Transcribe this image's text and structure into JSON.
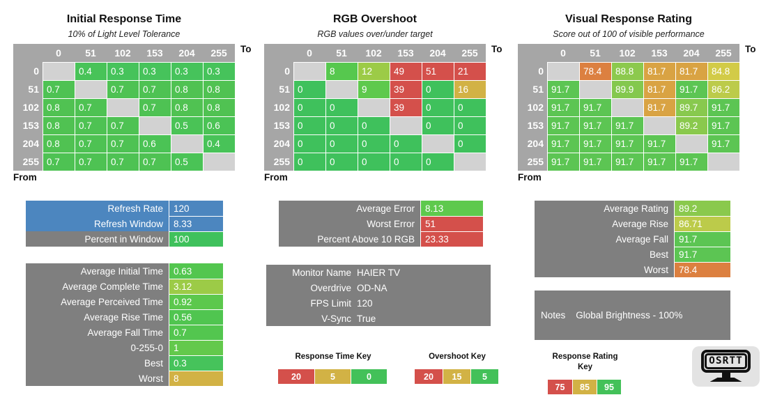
{
  "colors": {
    "header_gray": "#a6a6a6",
    "diagonal_gray": "#d2d2d2",
    "label_gray": "#7f7f7f",
    "blue": "#4c86bf",
    "key_red": "#d4504b",
    "key_gold": "#d2b245",
    "key_green": "#43c159"
  },
  "chart_data": [
    {
      "type": "heatmap",
      "title": "Initial Response Time",
      "subtitle": "10% of Light Level Tolerance",
      "x_label": "To",
      "y_label": "From",
      "x_ticks": [
        "0",
        "51",
        "102",
        "153",
        "204",
        "255"
      ],
      "y_ticks": [
        "0",
        "51",
        "102",
        "153",
        "204",
        "255"
      ],
      "values": [
        [
          null,
          "0.4",
          "0.3",
          "0.3",
          "0.3",
          "0.3"
        ],
        [
          "0.7",
          null,
          "0.7",
          "0.7",
          "0.8",
          "0.8"
        ],
        [
          "0.8",
          "0.7",
          null,
          "0.7",
          "0.8",
          "0.8"
        ],
        [
          "0.8",
          "0.7",
          "0.7",
          null,
          "0.5",
          "0.6"
        ],
        [
          "0.8",
          "0.7",
          "0.7",
          "0.6",
          null,
          "0.4"
        ],
        [
          "0.7",
          "0.7",
          "0.7",
          "0.7",
          "0.5",
          null
        ]
      ],
      "cell_colors": [
        [
          null,
          "#48c358",
          "#46c35b",
          "#46c35b",
          "#46c35b",
          "#46c35b"
        ],
        [
          "#4ec253",
          null,
          "#4ec253",
          "#4ec253",
          "#50c252",
          "#50c252"
        ],
        [
          "#50c252",
          "#4ec253",
          null,
          "#4ec253",
          "#50c252",
          "#50c252"
        ],
        [
          "#50c252",
          "#4ec253",
          "#4ec253",
          null,
          "#4ac356",
          "#4bc355"
        ],
        [
          "#50c252",
          "#4ec253",
          "#4ec253",
          "#4bc355",
          null,
          "#48c358"
        ],
        [
          "#4ec253",
          "#4ec253",
          "#4ec253",
          "#4ec253",
          "#4ac356",
          null
        ]
      ]
    },
    {
      "type": "heatmap",
      "title": "RGB Overshoot",
      "subtitle": "RGB values over/under target",
      "x_label": "To",
      "y_label": "From",
      "x_ticks": [
        "0",
        "51",
        "102",
        "153",
        "204",
        "255"
      ],
      "y_ticks": [
        "0",
        "51",
        "102",
        "153",
        "204",
        "255"
      ],
      "values": [
        [
          null,
          "8",
          "12",
          "49",
          "51",
          "21"
        ],
        [
          "0",
          null,
          "9",
          "39",
          "0",
          "16"
        ],
        [
          "0",
          "0",
          null,
          "39",
          "0",
          "0"
        ],
        [
          "0",
          "0",
          "0",
          null,
          "0",
          "0"
        ],
        [
          "0",
          "0",
          "0",
          "0",
          null,
          "0"
        ],
        [
          "0",
          "0",
          "0",
          "0",
          "0",
          null
        ]
      ],
      "cell_colors": [
        [
          null,
          "#56c84e",
          "#9ccb47",
          "#d4504b",
          "#d4504b",
          "#d4504b"
        ],
        [
          "#3fc15c",
          null,
          "#5ec94d",
          "#d4504b",
          "#3fc15c",
          "#d2b245"
        ],
        [
          "#3fc15c",
          "#3fc15c",
          null,
          "#d4504b",
          "#3fc15c",
          "#3fc15c"
        ],
        [
          "#3fc15c",
          "#3fc15c",
          "#3fc15c",
          null,
          "#3fc15c",
          "#3fc15c"
        ],
        [
          "#3fc15c",
          "#3fc15c",
          "#3fc15c",
          "#3fc15c",
          null,
          "#3fc15c"
        ],
        [
          "#3fc15c",
          "#3fc15c",
          "#3fc15c",
          "#3fc15c",
          "#3fc15c",
          null
        ]
      ]
    },
    {
      "type": "heatmap",
      "title": "Visual Response Rating",
      "subtitle": "Score out of 100 of visible performance",
      "x_label": "To",
      "y_label": "From",
      "x_ticks": [
        "0",
        "51",
        "102",
        "153",
        "204",
        "255"
      ],
      "y_ticks": [
        "0",
        "51",
        "102",
        "153",
        "204",
        "255"
      ],
      "values": [
        [
          null,
          "78.4",
          "88.8",
          "81.7",
          "81.7",
          "84.8"
        ],
        [
          "91.7",
          null,
          "89.9",
          "81.7",
          "91.7",
          "86.2"
        ],
        [
          "91.7",
          "91.7",
          null,
          "81.7",
          "89.7",
          "91.7"
        ],
        [
          "91.7",
          "91.7",
          "91.7",
          null,
          "89.2",
          "91.7"
        ],
        [
          "91.7",
          "91.7",
          "91.7",
          "91.7",
          null,
          "91.7"
        ],
        [
          "91.7",
          "91.7",
          "91.7",
          "91.7",
          "91.7",
          null
        ]
      ],
      "cell_colors": [
        [
          null,
          "#dc8040",
          "#8cc94d",
          "#d9a343",
          "#d9a343",
          "#d2cb47"
        ],
        [
          "#5cc553",
          null,
          "#84c84e",
          "#d9a343",
          "#5cc553",
          "#bccb4a"
        ],
        [
          "#5cc553",
          "#5cc553",
          null,
          "#d9a343",
          "#88c94e",
          "#5cc553"
        ],
        [
          "#5cc553",
          "#5cc553",
          "#5cc553",
          null,
          "#8ac94d",
          "#5cc553"
        ],
        [
          "#5cc553",
          "#5cc553",
          "#5cc553",
          "#5cc553",
          null,
          "#5cc553"
        ],
        [
          "#5cc553",
          "#5cc553",
          "#5cc553",
          "#5cc553",
          "#5cc553",
          null
        ]
      ]
    }
  ],
  "summary_tables": [
    {
      "id": "refresh",
      "rows": [
        {
          "label": "Refresh Rate",
          "value": "120",
          "label_bg": "#4c86bf",
          "value_bg": "#4c86bf"
        },
        {
          "label": "Refresh Window",
          "value": "8.33",
          "label_bg": "#4c86bf",
          "value_bg": "#4c86bf"
        },
        {
          "label": "Percent in Window",
          "value": "100",
          "value_bg": "#3fc15c"
        }
      ]
    },
    {
      "id": "response",
      "rows": [
        {
          "label": "Average Initial Time",
          "value": "0.63",
          "value_bg": "#53c64f"
        },
        {
          "label": "Average Complete Time",
          "value": "3.12",
          "value_bg": "#9ccb47"
        },
        {
          "label": "Average Perceived Time",
          "value": "0.92",
          "value_bg": "#5cc84d"
        },
        {
          "label": "Average Rise Time",
          "value": "0.56",
          "value_bg": "#50c550"
        },
        {
          "label": "Average Fall Time",
          "value": "0.7",
          "value_bg": "#53c64f"
        },
        {
          "label": "0-255-0",
          "value": "1",
          "value_bg": "#63c94c"
        },
        {
          "label": "Best",
          "value": "0.3",
          "value_bg": "#46c35b"
        },
        {
          "label": "Worst",
          "value": "8",
          "value_bg": "#d2b245"
        }
      ]
    },
    {
      "id": "error",
      "rows": [
        {
          "label": "Average Error",
          "value": "8.13",
          "value_bg": "#5ec94d"
        },
        {
          "label": "Worst Error",
          "value": "51",
          "value_bg": "#d4504b"
        },
        {
          "label": "Percent Above 10 RGB",
          "value": "23.33",
          "value_bg": "#d4504b"
        }
      ]
    },
    {
      "id": "rating",
      "rows": [
        {
          "label": "Average Rating",
          "value": "89.2",
          "value_bg": "#8ac94d"
        },
        {
          "label": "Average Rise",
          "value": "86.71",
          "value_bg": "#bccb4a"
        },
        {
          "label": "Average Fall",
          "value": "91.7",
          "value_bg": "#5cc553"
        },
        {
          "label": "Best",
          "value": "91.7",
          "value_bg": "#5cc553"
        },
        {
          "label": "Worst",
          "value": "78.4",
          "value_bg": "#dc8040"
        }
      ]
    }
  ],
  "monitor_info": {
    "rows": [
      {
        "label": "Monitor Name",
        "value": "HAIER TV"
      },
      {
        "label": "Overdrive",
        "value": "OD-NA"
      },
      {
        "label": "FPS Limit",
        "value": "120"
      },
      {
        "label": "V-Sync",
        "value": "True"
      }
    ]
  },
  "notes": {
    "label": "Notes",
    "value": "Global Brightness - 100%"
  },
  "keys": [
    {
      "id": "rt",
      "title": "Response Time Key",
      "cells": [
        {
          "label": "20",
          "bg": "#d4504b"
        },
        {
          "label": "5",
          "bg": "#d2b245"
        },
        {
          "label": "0",
          "bg": "#43c159"
        }
      ]
    },
    {
      "id": "os",
      "title": "Overshoot Key",
      "cells": [
        {
          "label": "20",
          "bg": "#d4504b"
        },
        {
          "label": "15",
          "bg": "#d2b245"
        },
        {
          "label": "5",
          "bg": "#43c159"
        }
      ]
    },
    {
      "id": "rr",
      "title": "Response Rating Key",
      "cells": [
        {
          "label": "75",
          "bg": "#d4504b"
        },
        {
          "label": "85",
          "bg": "#d2b245"
        },
        {
          "label": "95",
          "bg": "#43c159"
        }
      ]
    }
  ],
  "logo": {
    "text": "OSRTT"
  }
}
